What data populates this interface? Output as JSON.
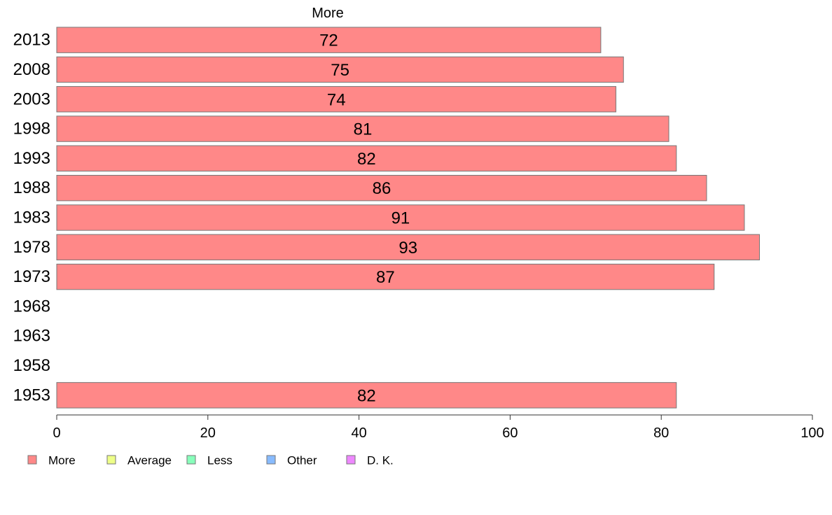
{
  "chart_data": {
    "type": "bar",
    "orientation": "horizontal",
    "title": "More",
    "categories": [
      "2013",
      "2008",
      "2003",
      "1998",
      "1993",
      "1988",
      "1983",
      "1978",
      "1973",
      "1968",
      "1963",
      "1958",
      "1953"
    ],
    "series": [
      {
        "name": "More",
        "color": "#ff8888",
        "values": [
          72,
          75,
          74,
          81,
          82,
          86,
          91,
          93,
          87,
          null,
          null,
          null,
          82
        ]
      }
    ],
    "xlim": [
      0,
      100
    ],
    "xticks": [
      0,
      20,
      40,
      60,
      80,
      100
    ],
    "grid": false,
    "legend": {
      "placement": "bottom-left",
      "entries": [
        {
          "label": "More",
          "color": "#ff8888"
        },
        {
          "label": "Average",
          "color": "#eeff88"
        },
        {
          "label": "Less",
          "color": "#88ffbb"
        },
        {
          "label": "Other",
          "color": "#88bbff"
        },
        {
          "label": "D. K.",
          "color": "#ee88ff"
        }
      ]
    }
  }
}
